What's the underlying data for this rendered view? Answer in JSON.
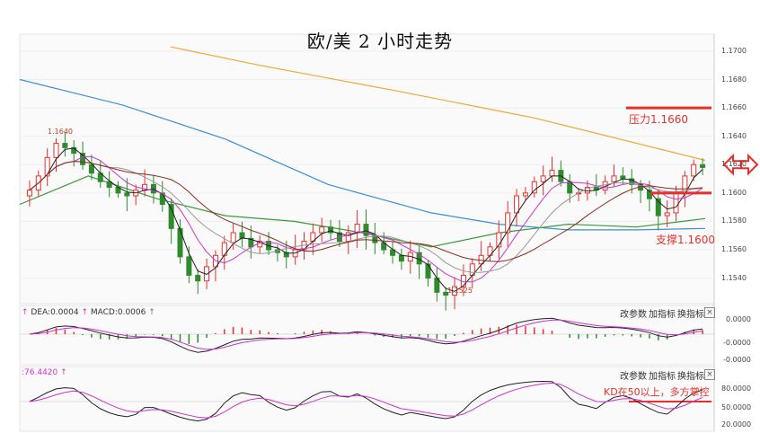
{
  "title": "欧/美 2 小时走势",
  "annotations": {
    "resistance_label": "压力1.1660",
    "support_label": "支撑1.1600",
    "kd_note": "KD在50以上，多方掌控",
    "high_marker": "1.1640",
    "low_marker": "1.1525"
  },
  "macd_panel": {
    "header_dea": "DEA:0.0004",
    "header_macd": "MACD:0.0006",
    "buttons": [
      "改参数",
      "加指标",
      "换指标"
    ],
    "close_symbol": "×",
    "y_ticks": [
      "0.0000",
      "-0.0000",
      "-0.0000"
    ]
  },
  "kd_panel": {
    "header": ":76.4420",
    "buttons": [
      "改参数",
      "加指标",
      "换指标"
    ],
    "close_symbol": "×",
    "y_ticks": [
      "80.0000",
      "50.0000",
      "20.0000"
    ]
  },
  "colors": {
    "resistance_line": "#e8302a",
    "support_line": "#e8302a",
    "candle_up": "#e8302a",
    "candle_down": "#2e8b2e",
    "ma_long": "#f0a830",
    "ma_mid": "#3a8fd8",
    "ma_green": "#3a9a3a",
    "ma_brown": "#8a2a1a",
    "ma_black": "#222222",
    "ma_magenta": "#cc33cc",
    "ma_gray": "#999999"
  },
  "chart_data": {
    "type": "candlestick",
    "price_axis": {
      "ticks": [
        "1.1700",
        "1.1680",
        "1.1660",
        "1.1640",
        "1.1620",
        "1.1600",
        "1.1580",
        "1.1560",
        "1.1540"
      ],
      "range": [
        1.1522,
        1.1712
      ]
    },
    "resistance": 1.166,
    "support": 1.16,
    "close_series": [
      1.1602,
      1.1612,
      1.1625,
      1.1635,
      1.1632,
      1.1628,
      1.162,
      1.1614,
      1.1608,
      1.1604,
      1.16,
      1.1598,
      1.1602,
      1.1606,
      1.16,
      1.1592,
      1.1575,
      1.1555,
      1.1542,
      1.1538,
      1.1548,
      1.1556,
      1.1565,
      1.1572,
      1.1568,
      1.1562,
      1.1566,
      1.156,
      1.1558,
      1.1555,
      1.156,
      1.1566,
      1.1572,
      1.1576,
      1.1572,
      1.1566,
      1.1572,
      1.1578,
      1.157,
      1.1565,
      1.156,
      1.1556,
      1.1552,
      1.1558,
      1.155,
      1.154,
      1.153,
      1.1528,
      1.1534,
      1.1542,
      1.155,
      1.1556,
      1.1562,
      1.1572,
      1.1586,
      1.1598,
      1.16,
      1.1608,
      1.1612,
      1.1616,
      1.1608,
      1.16,
      1.16,
      1.1604,
      1.1602,
      1.1608,
      1.1612,
      1.161,
      1.1606,
      1.1602,
      1.1596,
      1.1584,
      1.1586,
      1.16,
      1.1612,
      1.162,
      1.1618
    ],
    "ma_lines": [
      {
        "name": "",
        "color_key": "ma_long",
        "points": [
          [
            0.22,
            1.1703
          ],
          [
            0.35,
            1.169
          ],
          [
            0.55,
            1.1672
          ],
          [
            0.75,
            1.1653
          ],
          [
            1.0,
            1.1623
          ]
        ]
      },
      {
        "name": "",
        "color_key": "ma_mid",
        "points": [
          [
            0.0,
            1.168
          ],
          [
            0.15,
            1.1662
          ],
          [
            0.3,
            1.1638
          ],
          [
            0.45,
            1.1606
          ],
          [
            0.6,
            1.1586
          ],
          [
            0.7,
            1.1578
          ],
          [
            0.8,
            1.1574
          ],
          [
            0.9,
            1.1574
          ],
          [
            1.0,
            1.1575
          ]
        ]
      },
      {
        "name": "",
        "color_key": "ma_green",
        "points": [
          [
            0.0,
            1.1592
          ],
          [
            0.1,
            1.1612
          ],
          [
            0.2,
            1.1596
          ],
          [
            0.3,
            1.1584
          ],
          [
            0.4,
            1.158
          ],
          [
            0.5,
            1.1572
          ],
          [
            0.6,
            1.1562
          ],
          [
            0.7,
            1.1572
          ],
          [
            0.8,
            1.1578
          ],
          [
            0.9,
            1.1576
          ],
          [
            1.0,
            1.1582
          ]
        ]
      }
    ],
    "macd": {
      "dif": [],
      "dea": [],
      "hist": []
    },
    "kd": {
      "k": [],
      "d": [],
      "reference": 50
    }
  }
}
